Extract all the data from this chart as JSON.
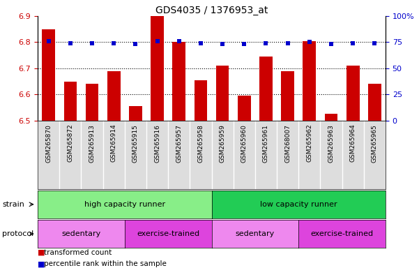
{
  "title": "GDS4035 / 1376953_at",
  "samples": [
    "GSM265870",
    "GSM265872",
    "GSM265913",
    "GSM265914",
    "GSM265915",
    "GSM265916",
    "GSM265957",
    "GSM265958",
    "GSM265959",
    "GSM265960",
    "GSM265961",
    "GSM268007",
    "GSM265962",
    "GSM265963",
    "GSM265964",
    "GSM265965"
  ],
  "transformed_count": [
    6.85,
    6.65,
    6.64,
    6.69,
    6.555,
    6.9,
    6.8,
    6.655,
    6.71,
    6.595,
    6.745,
    6.69,
    6.805,
    6.525,
    6.71,
    6.64
  ],
  "percentile_rank": [
    76,
    74,
    74,
    74,
    73.5,
    76,
    76,
    74,
    73.5,
    73.5,
    74,
    74,
    75,
    73.5,
    74,
    74
  ],
  "ylim": [
    6.5,
    6.9
  ],
  "ylim_right": [
    0,
    100
  ],
  "yticks_left": [
    6.5,
    6.6,
    6.7,
    6.8,
    6.9
  ],
  "yticks_right": [
    0,
    25,
    50,
    75,
    100
  ],
  "bar_color": "#cc0000",
  "dot_color": "#0000cc",
  "bar_bottom": 6.5,
  "strain_groups": [
    {
      "label": "high capacity runner",
      "start": 0,
      "end": 8,
      "color": "#88ee88"
    },
    {
      "label": "low capacity runner",
      "start": 8,
      "end": 16,
      "color": "#22cc55"
    }
  ],
  "protocol_groups": [
    {
      "label": "sedentary",
      "start": 0,
      "end": 4,
      "color": "#ee88ee"
    },
    {
      "label": "exercise-trained",
      "start": 4,
      "end": 8,
      "color": "#dd44dd"
    },
    {
      "label": "sedentary",
      "start": 8,
      "end": 12,
      "color": "#ee88ee"
    },
    {
      "label": "exercise-trained",
      "start": 12,
      "end": 16,
      "color": "#dd44dd"
    }
  ],
  "legend_red_label": "transformed count",
  "legend_blue_label": "percentile rank within the sample",
  "strain_label": "strain",
  "protocol_label": "protocol",
  "tick_color_left": "#cc0000",
  "tick_color_right": "#0000cc",
  "plot_bg_color": "#ffffff",
  "xticklabel_bg": "#dddddd"
}
